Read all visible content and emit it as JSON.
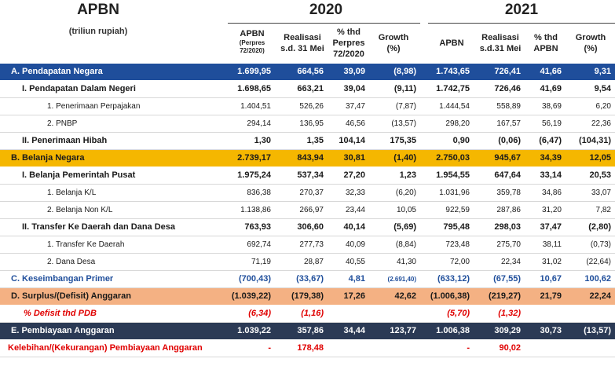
{
  "header": {
    "title": "APBN",
    "subtitle": "(triliun rupiah)",
    "year1": "2020",
    "year2": "2021",
    "cols": [
      {
        "l1": "APBN",
        "l2": "(Perpres",
        "l3": "72/2020)"
      },
      {
        "l1": "Realisasi",
        "l2": "s.d. 31 Mei",
        "l3": ""
      },
      {
        "l1": "% thd",
        "l2": "Perpres",
        "l3": "72/2020"
      },
      {
        "l1": "Growth",
        "l2": "(%)",
        "l3": ""
      },
      {
        "l1": "APBN",
        "l2": "",
        "l3": ""
      },
      {
        "l1": "Realisasi",
        "l2": "s.d.31 Mei",
        "l3": ""
      },
      {
        "l1": "% thd",
        "l2": "APBN",
        "l3": ""
      },
      {
        "l1": "Growth",
        "l2": "(%)",
        "l3": ""
      }
    ]
  },
  "rows": [
    {
      "label": "A.  Pendapatan Negara",
      "v": [
        "1.699,95",
        "664,56",
        "39,09",
        "(8,98)",
        "1.743,65",
        "726,41",
        "41,66",
        "9,31"
      ]
    },
    {
      "label": "I.  Pendapatan Dalam Negeri",
      "v": [
        "1.698,65",
        "663,21",
        "39,04",
        "(9,11)",
        "1.742,75",
        "726,46",
        "41,69",
        "9,54"
      ]
    },
    {
      "label": "1.  Penerimaan Perpajakan",
      "v": [
        "1.404,51",
        "526,26",
        "37,47",
        "(7,87)",
        "1.444,54",
        "558,89",
        "38,69",
        "6,20"
      ]
    },
    {
      "label": "2.  PNBP",
      "v": [
        "294,14",
        "136,95",
        "46,56",
        "(13,57)",
        "298,20",
        "167,57",
        "56,19",
        "22,36"
      ]
    },
    {
      "label": "II.  Penerimaan Hibah",
      "v": [
        "1,30",
        "1,35",
        "104,14",
        "175,35",
        "0,90",
        "(0,06)",
        "(6,47)",
        "(104,31)"
      ]
    },
    {
      "label": "B.  Belanja Negara",
      "v": [
        "2.739,17",
        "843,94",
        "30,81",
        "(1,40)",
        "2.750,03",
        "945,67",
        "34,39",
        "12,05"
      ]
    },
    {
      "label": "I.  Belanja Pemerintah Pusat",
      "v": [
        "1.975,24",
        "537,34",
        "27,20",
        "1,23",
        "1.954,55",
        "647,64",
        "33,14",
        "20,53"
      ]
    },
    {
      "label": "1.  Belanja K/L",
      "v": [
        "836,38",
        "270,37",
        "32,33",
        "(6,20)",
        "1.031,96",
        "359,78",
        "34,86",
        "33,07"
      ]
    },
    {
      "label": "2.  Belanja Non K/L",
      "v": [
        "1.138,86",
        "266,97",
        "23,44",
        "10,05",
        "922,59",
        "287,86",
        "31,20",
        "7,82"
      ]
    },
    {
      "label": "II.  Transfer Ke Daerah dan Dana Desa",
      "v": [
        "763,93",
        "306,60",
        "40,14",
        "(5,69)",
        "795,48",
        "298,03",
        "37,47",
        "(2,80)"
      ]
    },
    {
      "label": "1.  Transfer Ke Daerah",
      "v": [
        "692,74",
        "277,73",
        "40,09",
        "(8,84)",
        "723,48",
        "275,70",
        "38,11",
        "(0,73)"
      ]
    },
    {
      "label": "2.  Dana Desa",
      "v": [
        "71,19",
        "28,87",
        "40,55",
        "41,30",
        "72,00",
        "22,34",
        "31,02",
        "(22,64)"
      ]
    },
    {
      "label": "C.  Keseimbangan Primer",
      "v": [
        "(700,43)",
        "(33,67)",
        "4,81",
        "(2.691,40)",
        "(633,12)",
        "(67,55)",
        "10,67",
        "100,62"
      ]
    },
    {
      "label": "D.  Surplus/(Defisit) Anggaran",
      "v": [
        "(1.039,22)",
        "(179,38)",
        "17,26",
        "42,62",
        "(1.006,38)",
        "(219,27)",
        "21,79",
        "22,24"
      ]
    },
    {
      "label": "% Defisit thd PDB",
      "v": [
        "(6,34)",
        "(1,16)",
        "",
        "",
        "(5,70)",
        "(1,32)",
        "",
        ""
      ]
    },
    {
      "label": "E.  Pembiayaan Anggaran",
      "v": [
        "1.039,22",
        "357,86",
        "34,44",
        "123,77",
        "1.006,38",
        "309,29",
        "30,73",
        "(13,57)"
      ]
    },
    {
      "label": "Kelebihan/(Kekurangan) Pembiayaan Anggaran",
      "v": [
        "-",
        "178,48",
        "",
        "",
        "-",
        "90,02",
        "",
        ""
      ]
    }
  ],
  "colors": {
    "blue": "#1f4e9b",
    "gold": "#f5b700",
    "salmon": "#f4b183",
    "navy": "#2b3a55",
    "red": "#e00000"
  }
}
